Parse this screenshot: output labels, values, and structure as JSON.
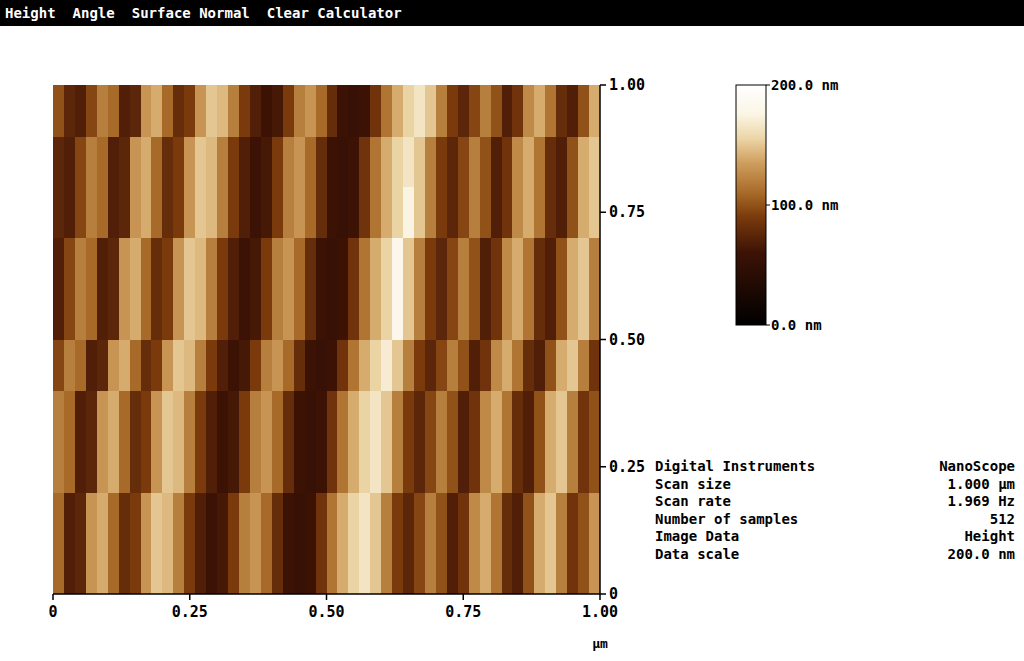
{
  "chart_data": {
    "type": "heatmap",
    "menu": [
      "Height",
      "Angle",
      "Surface Normal",
      "Clear Calculator"
    ],
    "x_label": "μm",
    "xlim": [
      0,
      1
    ],
    "ylim": [
      0,
      1
    ],
    "xticks": [
      0,
      0.25,
      {
        "value": 0.5,
        "label": "0.50"
      },
      0.75,
      {
        "value": 1,
        "label": "1.00"
      }
    ],
    "yticks": [
      0,
      0.25,
      {
        "value": 0.5,
        "label": "0.50"
      },
      0.75,
      {
        "value": 1,
        "label": "1.00"
      }
    ],
    "cells": [
      [
        110,
        70,
        75,
        130,
        140,
        110,
        80,
        90,
        130,
        150,
        145,
        120,
        90,
        70,
        60,
        65,
        90,
        120,
        130,
        110,
        80,
        60,
        55,
        60,
        85,
        115,
        140,
        155,
        165,
        150,
        120,
        90,
        75,
        95,
        120,
        100,
        70,
        85,
        125,
        140,
        115,
        80,
        70,
        100,
        140,
        150,
        120,
        85,
        100,
        130
      ],
      [
        110,
        70,
        75,
        130,
        140,
        110,
        80,
        90,
        130,
        150,
        145,
        120,
        90,
        70,
        60,
        65,
        90,
        120,
        130,
        110,
        80,
        60,
        55,
        60,
        85,
        115,
        140,
        155,
        165,
        150,
        120,
        90,
        75,
        95,
        120,
        100,
        70,
        85,
        125,
        140,
        115,
        80,
        70,
        100,
        140,
        150,
        120,
        85,
        100,
        130
      ],
      [
        120,
        110,
        70,
        75,
        130,
        140,
        110,
        80,
        90,
        130,
        150,
        145,
        120,
        90,
        70,
        60,
        65,
        90,
        120,
        130,
        110,
        80,
        60,
        55,
        60,
        85,
        115,
        140,
        155,
        165,
        150,
        120,
        90,
        75,
        95,
        120,
        100,
        70,
        85,
        125,
        140,
        115,
        80,
        70,
        100,
        140,
        150,
        120,
        85,
        100
      ],
      [
        120,
        110,
        70,
        75,
        130,
        140,
        110,
        80,
        90,
        130,
        150,
        145,
        120,
        90,
        70,
        60,
        65,
        90,
        120,
        130,
        110,
        80,
        60,
        55,
        60,
        85,
        115,
        140,
        155,
        165,
        150,
        120,
        90,
        75,
        95,
        120,
        100,
        70,
        85,
        125,
        140,
        115,
        80,
        70,
        100,
        140,
        150,
        120,
        85,
        100
      ],
      [
        95,
        120,
        110,
        70,
        75,
        130,
        140,
        110,
        80,
        90,
        130,
        150,
        145,
        120,
        90,
        70,
        60,
        65,
        90,
        120,
        130,
        110,
        80,
        60,
        55,
        60,
        85,
        115,
        140,
        155,
        170,
        150,
        120,
        90,
        75,
        95,
        120,
        100,
        70,
        85,
        125,
        140,
        115,
        80,
        70,
        100,
        140,
        150,
        120,
        85
      ],
      [
        70,
        95,
        120,
        110,
        70,
        75,
        130,
        140,
        110,
        80,
        90,
        130,
        150,
        145,
        120,
        90,
        70,
        60,
        65,
        90,
        120,
        130,
        110,
        80,
        60,
        55,
        60,
        85,
        115,
        140,
        155,
        180,
        150,
        120,
        90,
        75,
        95,
        120,
        100,
        70,
        85,
        125,
        140,
        115,
        80,
        70,
        100,
        140,
        150,
        120
      ],
      [
        70,
        95,
        120,
        110,
        70,
        75,
        130,
        140,
        110,
        80,
        90,
        130,
        150,
        145,
        120,
        90,
        70,
        60,
        65,
        90,
        120,
        130,
        110,
        80,
        60,
        55,
        60,
        85,
        115,
        140,
        155,
        180,
        150,
        120,
        90,
        75,
        95,
        120,
        100,
        70,
        85,
        125,
        140,
        115,
        80,
        70,
        100,
        140,
        150,
        120
      ],
      [
        75,
        70,
        95,
        120,
        110,
        70,
        75,
        130,
        140,
        110,
        80,
        90,
        130,
        150,
        145,
        120,
        90,
        70,
        60,
        65,
        90,
        120,
        130,
        110,
        80,
        60,
        55,
        60,
        85,
        115,
        140,
        155,
        175,
        150,
        120,
        90,
        75,
        95,
        120,
        100,
        70,
        85,
        125,
        140,
        115,
        80,
        70,
        100,
        140,
        150
      ],
      [
        75,
        70,
        95,
        120,
        110,
        70,
        75,
        130,
        140,
        110,
        80,
        90,
        130,
        150,
        145,
        120,
        90,
        70,
        60,
        65,
        90,
        120,
        130,
        110,
        80,
        60,
        55,
        60,
        85,
        115,
        140,
        155,
        165,
        150,
        120,
        90,
        75,
        95,
        120,
        100,
        70,
        85,
        125,
        140,
        115,
        80,
        70,
        100,
        140,
        150
      ],
      [
        100,
        75,
        70,
        95,
        120,
        110,
        70,
        75,
        130,
        140,
        110,
        80,
        90,
        130,
        150,
        145,
        120,
        90,
        70,
        60,
        65,
        90,
        120,
        130,
        110,
        80,
        60,
        55,
        60,
        85,
        115,
        140,
        155,
        165,
        150,
        120,
        90,
        75,
        95,
        120,
        100,
        70,
        85,
        125,
        140,
        115,
        80,
        70,
        100,
        140
      ]
    ],
    "colorbar": {
      "range": [
        0,
        200
      ],
      "ticks": [
        {
          "value": 0,
          "label": "0.0 nm"
        },
        {
          "value": 100,
          "label": "100.0 nm"
        },
        {
          "value": 200,
          "label": "200.0 nm"
        }
      ]
    },
    "info": [
      {
        "label": "Digital Instruments",
        "value": "NanoScope"
      },
      {
        "label": "Scan size",
        "value": "1.000 μm"
      },
      {
        "label": "Scan rate",
        "value": "1.969 Hz"
      },
      {
        "label": "Number of samples",
        "value": "512"
      },
      {
        "label": "Image Data",
        "value": "Height"
      },
      {
        "label": "Data scale",
        "value": "200.0 nm"
      }
    ]
  }
}
